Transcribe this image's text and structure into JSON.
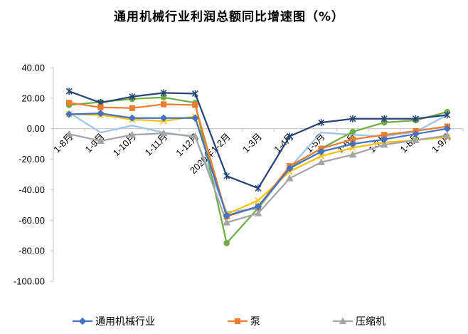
{
  "chart_data": {
    "type": "line",
    "title": "通用机械行业利润总额同比增速图（%）",
    "xlabel": "",
    "ylabel": "",
    "categories": [
      "1-8月",
      "1-9月",
      "1-10月",
      "1-11月",
      "1-12月",
      "2020年1-2月",
      "1-3月",
      "1-4月",
      "1-5月",
      "1-6月",
      "1-7月",
      "1-8月",
      "1-9月"
    ],
    "ylim": [
      -100,
      40
    ],
    "yticks": [
      40,
      20,
      0,
      -20,
      -40,
      -60,
      -80,
      -100
    ],
    "ytick_labels": [
      "40.00",
      "20.00",
      "0.00",
      "-20.00",
      "-40.00",
      "-60.00",
      "-80.00",
      "-100.00"
    ],
    "grid": false,
    "legend": "bottom",
    "series": [
      {
        "name": "通用机械行业",
        "color": "#4472C4",
        "marker": "diamond",
        "values": [
          9.5,
          10,
          7,
          7,
          7,
          -57,
          -51,
          -26,
          -15,
          -10,
          -7,
          -3.5,
          0
        ]
      },
      {
        "name": "泵",
        "color": "#ED7D31",
        "marker": "square",
        "values": [
          17,
          14,
          13.5,
          16,
          15.5,
          -57.5,
          -51,
          -24.5,
          -13,
          -7,
          -4,
          -1.5,
          1.5
        ]
      },
      {
        "name": "压缩机",
        "color": "#A5A5A5",
        "marker": "triangle",
        "values": [
          -3.5,
          -8,
          -4,
          -3,
          -5,
          -61.5,
          -55.5,
          -32.5,
          -22,
          -17,
          -10.5,
          -7.5,
          -4.5
        ]
      },
      {
        "color": "#264478",
        "marker": "asterisk",
        "values": [
          24.5,
          17,
          21,
          23.5,
          23,
          -31,
          -39,
          -5,
          4,
          6.5,
          6.5,
          6.5,
          9
        ]
      },
      {
        "color": "#70AD47",
        "marker": "circle",
        "values": [
          15.5,
          17.5,
          19.5,
          20.5,
          17,
          -75,
          -52,
          -25,
          -13,
          -2,
          4,
          5.5,
          11
        ]
      },
      {
        "color": "#FFC000",
        "marker": "x",
        "values": [
          9.5,
          9,
          6,
          5,
          8,
          -56,
          -47,
          -28,
          -18,
          -12.5,
          -9,
          -7.5,
          -5.5
        ]
      },
      {
        "color": "#9DC3E6",
        "marker": "none",
        "values": [
          10.5,
          -2.5,
          2,
          -2.5,
          -5.5,
          -54.5,
          -52.5,
          -25.5,
          -2.5,
          -4,
          -5,
          -2,
          9
        ]
      }
    ]
  }
}
